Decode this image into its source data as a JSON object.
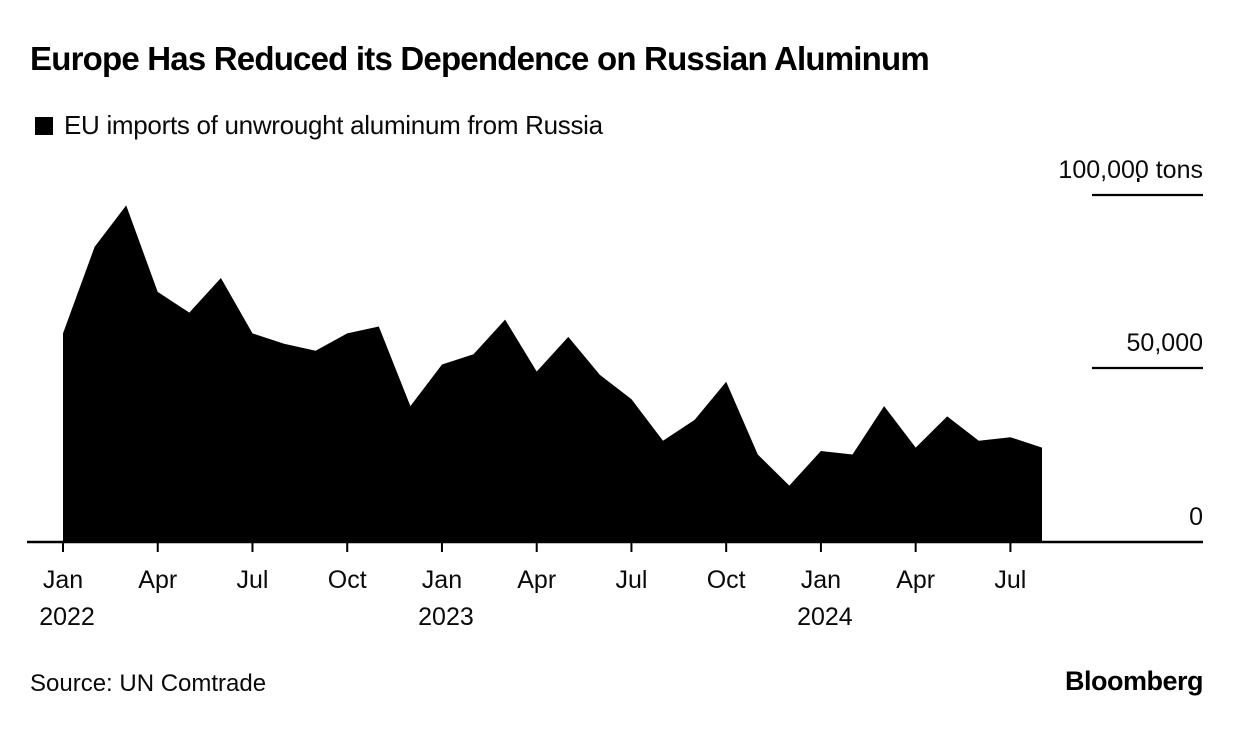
{
  "header": {
    "title": "Europe Has Reduced its Dependence on Russian Aluminum"
  },
  "legend": {
    "label": "EU imports of unwrought aluminum from Russia",
    "swatch_color": "#000000"
  },
  "chart_data": {
    "type": "area",
    "title": "Europe Has Reduced its Dependence on Russian Aluminum",
    "series_name": "EU imports of unwrought aluminum from Russia",
    "unit": "tons",
    "x": [
      "Jan 2022",
      "Feb 2022",
      "Mar 2022",
      "Apr 2022",
      "May 2022",
      "Jun 2022",
      "Jul 2022",
      "Aug 2022",
      "Sep 2022",
      "Oct 2022",
      "Nov 2022",
      "Dec 2022",
      "Jan 2023",
      "Feb 2023",
      "Mar 2023",
      "Apr 2023",
      "May 2023",
      "Jun 2023",
      "Jul 2023",
      "Aug 2023",
      "Sep 2023",
      "Oct 2023",
      "Nov 2023",
      "Dec 2023",
      "Jan 2024",
      "Feb 2024",
      "Mar 2024",
      "Apr 2024",
      "May 2024",
      "Jun 2024",
      "Jul 2024",
      "Aug 2024"
    ],
    "values": [
      60000,
      85000,
      97000,
      72000,
      66000,
      76000,
      60000,
      57000,
      55000,
      60000,
      62000,
      39000,
      51000,
      54000,
      64000,
      49000,
      59000,
      48000,
      41000,
      29000,
      35000,
      46000,
      25000,
      16000,
      26000,
      25000,
      39000,
      27000,
      36000,
      29000,
      30000,
      27000
    ],
    "ylim": [
      0,
      100000
    ],
    "yticks": [
      {
        "value": 100000,
        "label": "100,000 tons"
      },
      {
        "value": 50000,
        "label": "50,000"
      },
      {
        "value": 0,
        "label": "0"
      }
    ],
    "xticks": [
      {
        "index": 0,
        "label": "Jan",
        "year": "2022"
      },
      {
        "index": 3,
        "label": "Apr"
      },
      {
        "index": 6,
        "label": "Jul"
      },
      {
        "index": 9,
        "label": "Oct"
      },
      {
        "index": 12,
        "label": "Jan",
        "year": "2023"
      },
      {
        "index": 15,
        "label": "Apr"
      },
      {
        "index": 18,
        "label": "Jul"
      },
      {
        "index": 21,
        "label": "Oct"
      },
      {
        "index": 24,
        "label": "Jan",
        "year": "2024"
      },
      {
        "index": 27,
        "label": "Apr"
      },
      {
        "index": 30,
        "label": "Jul"
      }
    ],
    "fill_color": "#000000",
    "axis_color": "#000000",
    "text_color": "#0a0a0a",
    "background": "#ffffff",
    "grid": "short tick lines at right side only",
    "legend_position": "top-left"
  },
  "source": {
    "label": "Source: UN Comtrade"
  },
  "branding": {
    "logo": "Bloomberg"
  }
}
